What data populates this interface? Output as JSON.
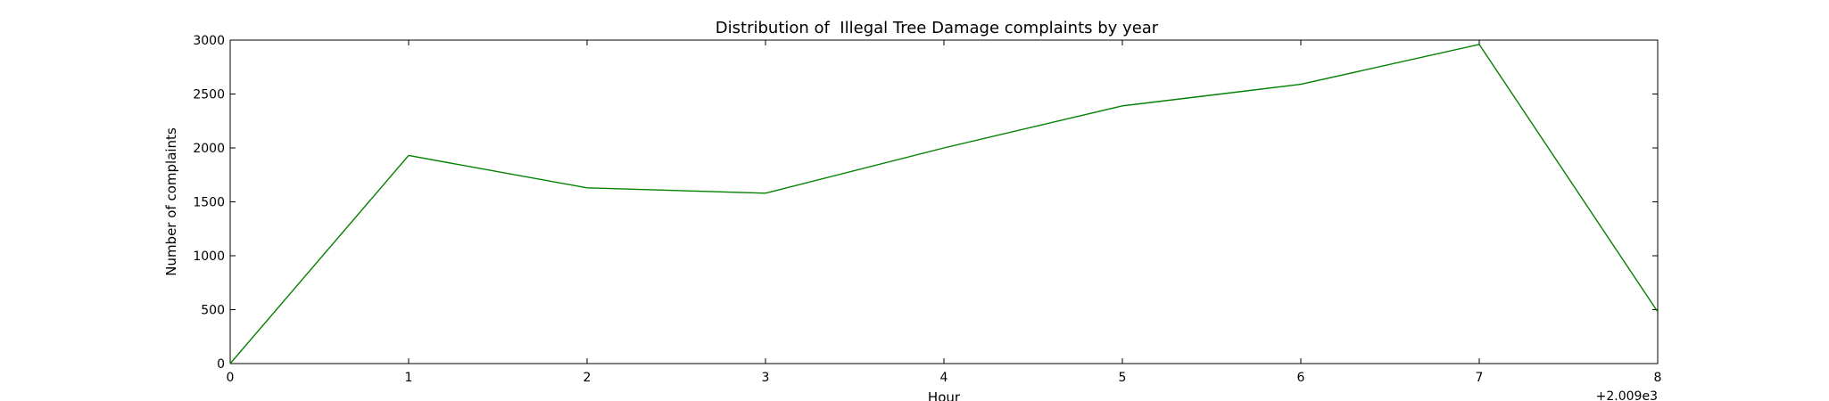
{
  "chart_data": {
    "type": "line",
    "title": "Distribution of  Illegal Tree Damage complaints by year",
    "xlabel": "Hour",
    "ylabel": "Number of complaints",
    "x_offset_label": "+2.009e3",
    "xlim": [
      0,
      8
    ],
    "ylim": [
      0,
      3000
    ],
    "x_ticks": [
      0,
      1,
      2,
      3,
      4,
      5,
      6,
      7,
      8
    ],
    "y_ticks": [
      0,
      500,
      1000,
      1500,
      2000,
      2500,
      3000
    ],
    "grid": false,
    "legend": "none",
    "series": [
      {
        "color": "#008000",
        "x": [
          0,
          1,
          2,
          3,
          4,
          5,
          6,
          7,
          8
        ],
        "values": [
          0,
          1930,
          1630,
          1580,
          2000,
          2390,
          2590,
          2960,
          480
        ]
      }
    ]
  }
}
